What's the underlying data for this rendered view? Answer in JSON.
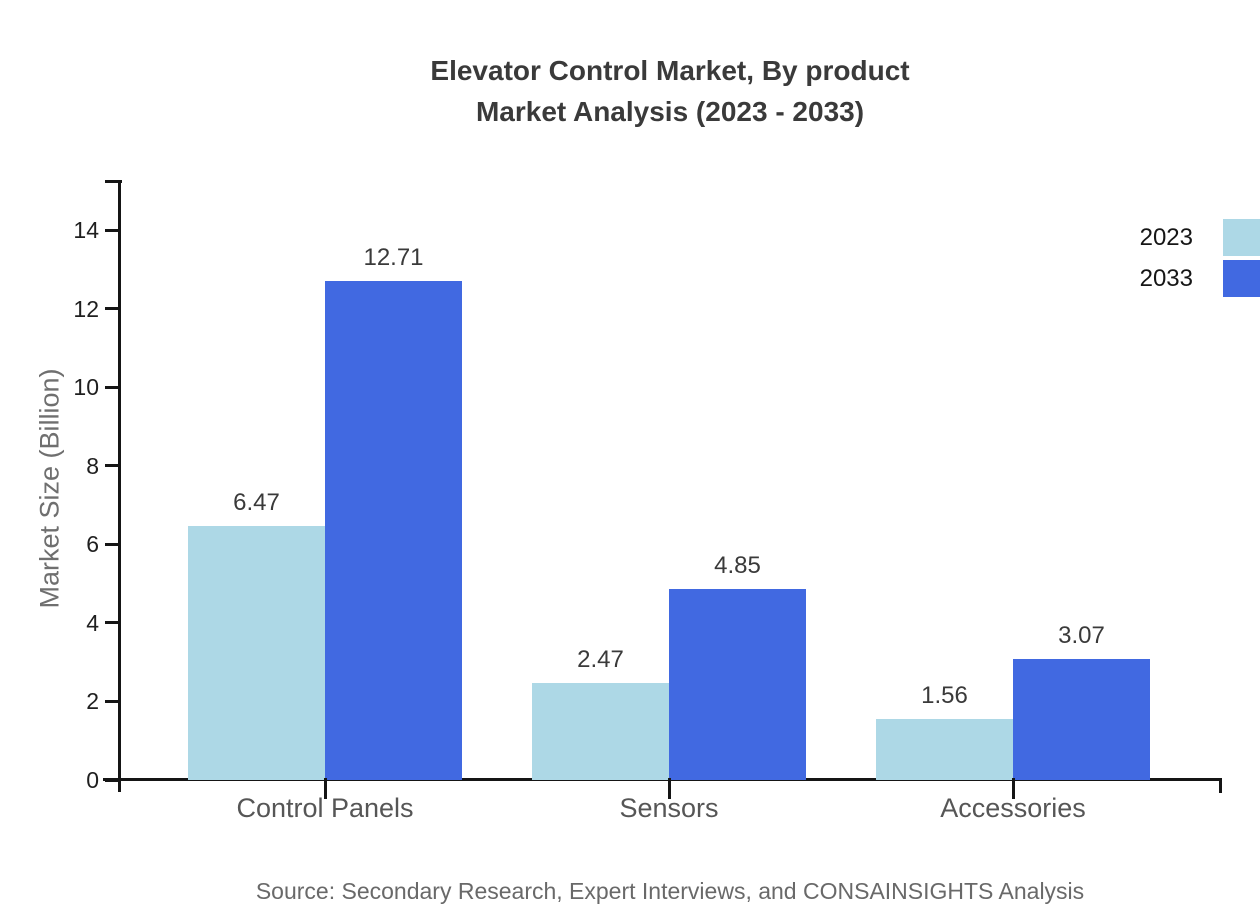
{
  "title": {
    "line1": "Elevator Control Market, By product",
    "line2": "Market Analysis (2023 - 2033)"
  },
  "chart_data": {
    "type": "bar",
    "title": "Elevator Control Market, By product Market Analysis (2023 - 2033)",
    "categories": [
      "Control Panels",
      "Sensors",
      "Accessories"
    ],
    "series": [
      {
        "name": "2023",
        "color": "#ADD8E6",
        "values": [
          6.47,
          2.47,
          1.56
        ]
      },
      {
        "name": "2033",
        "color": "#4169E1",
        "values": [
          12.71,
          4.85,
          3.07
        ]
      }
    ],
    "xlabel": "",
    "ylabel": "Market Size (Billion)",
    "ylim": [
      0,
      14
    ],
    "yticks": [
      0,
      2,
      4,
      6,
      8,
      10,
      12,
      14
    ],
    "grid": false,
    "legend_position": "top-right",
    "value_labels": true,
    "axis_color": "#151515"
  },
  "source": "Source: Secondary Research, Expert Interviews, and CONSAINSIGHTS Analysis"
}
